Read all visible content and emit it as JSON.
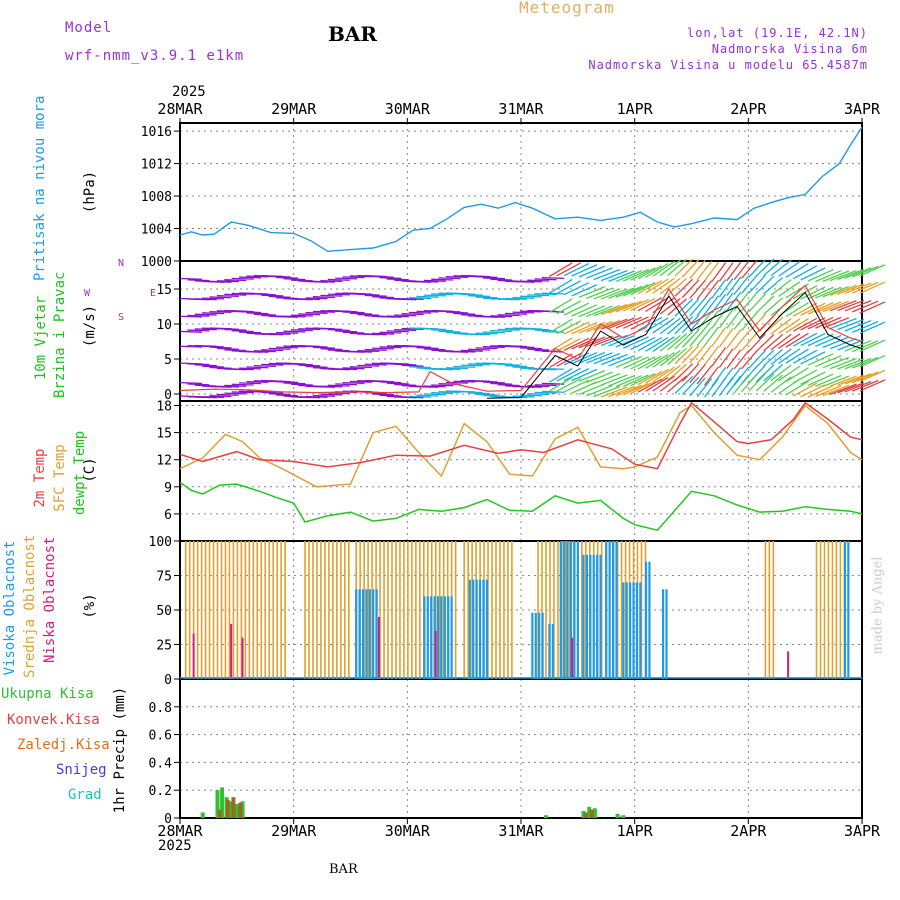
{
  "header": {
    "model_label": "Model",
    "model_name": "wrf-nmm_v3.9.1 e1km",
    "station": "BAR",
    "meteogram": "Meteogram",
    "lonlat": "lon,lat (19.1E, 42.1N)",
    "elevation": "Nadmorska Visina 6m",
    "model_elevation": "Nadmorska Visina u modelu 65.4587m",
    "year_top": "2025",
    "year_bottom": "2025",
    "footer_station": "BAR",
    "watermark": "made by Angel"
  },
  "colors": {
    "pressure": "#1e9be6",
    "temp2m": "#e84040",
    "sfc": "#e0a030",
    "dew": "#20c820",
    "high_cloud": "#1e9be6",
    "mid_cloud": "#e0a030",
    "low_cloud": "#d0207a",
    "total_precip": "#30c030",
    "conv_precip": "#e84040",
    "frz_precip": "#e07020",
    "snow": "#4040e0",
    "hail": "#20c0c0",
    "wind_slow": "#8a10d0",
    "wind_mid": "#10b0e0",
    "wind_fast": "#e8a020",
    "model_label": "#9b30d0"
  },
  "panels": {
    "pressure": {
      "label": "Pritisak na nivou mora",
      "unit": "(hPa)"
    },
    "wind": {
      "label1": "10m Vjetar",
      "label2": "Brzina i Pravac",
      "unit": "(m/s)",
      "compass_n": "N",
      "compass_s": "S",
      "compass_w": "W",
      "compass_e": "E"
    },
    "temp": {
      "label1": "2m Temp",
      "label2": "SFC Temp",
      "label3": "dewpt Temp",
      "unit": "(C)"
    },
    "cloud": {
      "label1": "Visoka Oblacnost",
      "label2": "Srednja Oblacnost",
      "label3": "Niska Oblacnost",
      "unit": "(%)"
    },
    "precip": {
      "unit": "1hr Precip (mm)",
      "legend": [
        "Ukupna Kisa",
        "Konvek.Kisa",
        "Zaledj.Kisa",
        "Snijeg",
        "Grad"
      ]
    }
  },
  "chart_data": {
    "type": "line",
    "x_ticks": [
      "28MAR",
      "29MAR",
      "30MAR",
      "31MAR",
      "1APR",
      "2APR",
      "3APR"
    ],
    "x_range_days": [
      0,
      6
    ],
    "pressure": {
      "ylim": [
        1000,
        1017
      ],
      "ticks": [
        1000,
        1004,
        1008,
        1012,
        1016
      ],
      "x": [
        0,
        0.1,
        0.2,
        0.3,
        0.45,
        0.6,
        0.8,
        1.0,
        1.15,
        1.3,
        1.5,
        1.7,
        1.9,
        2.05,
        2.2,
        2.35,
        2.5,
        2.65,
        2.8,
        2.95,
        3.1,
        3.3,
        3.5,
        3.7,
        3.9,
        4.05,
        4.2,
        4.35,
        4.5,
        4.7,
        4.9,
        5.05,
        5.2,
        5.35,
        5.5,
        5.65,
        5.8,
        5.9,
        6.0
      ],
      "values": [
        1003.2,
        1003.6,
        1003.2,
        1003.3,
        1004.8,
        1004.4,
        1003.5,
        1003.4,
        1002.5,
        1001.2,
        1001.4,
        1001.6,
        1002.4,
        1003.8,
        1004.0,
        1005.2,
        1006.6,
        1007.0,
        1006.5,
        1007.2,
        1006.5,
        1005.2,
        1005.4,
        1005.0,
        1005.4,
        1006.0,
        1004.8,
        1004.2,
        1004.6,
        1005.3,
        1005.1,
        1006.5,
        1007.2,
        1007.8,
        1008.2,
        1010.4,
        1012.0,
        1014.3,
        1016.5
      ]
    },
    "wind": {
      "ylim": [
        -1,
        19
      ],
      "ticks": [
        0,
        5,
        10,
        15
      ],
      "x": [
        0,
        0.3,
        0.6,
        0.9,
        1.2,
        1.5,
        1.8,
        2.1,
        2.2,
        2.4,
        2.7,
        3.0,
        3.1,
        3.3,
        3.5,
        3.7,
        3.9,
        4.1,
        4.3,
        4.5,
        4.7,
        4.9,
        5.1,
        5.3,
        5.5,
        5.7,
        5.9,
        6.0
      ],
      "values": [
        0.5,
        0.7,
        0.6,
        0.3,
        0.2,
        0.3,
        0.2,
        0.3,
        3.2,
        1.5,
        0.4,
        0.5,
        2.5,
        6.5,
        5.0,
        10.0,
        8.0,
        9.5,
        15.0,
        10.0,
        12.0,
        13.5,
        9.0,
        12.5,
        15.5,
        9.5,
        8.0,
        7.5
      ]
    },
    "temperature": {
      "ylim": [
        3,
        18.5
      ],
      "ticks": [
        6,
        9,
        12,
        15,
        18
      ],
      "t2m": {
        "name": "2m Temp",
        "x": [
          0,
          0.2,
          0.5,
          0.7,
          1.0,
          1.3,
          1.6,
          1.9,
          2.2,
          2.5,
          2.8,
          3.0,
          3.2,
          3.5,
          3.8,
          4.0,
          4.2,
          4.4,
          4.5,
          4.7,
          4.9,
          5.0,
          5.2,
          5.4,
          5.5,
          5.7,
          5.9,
          6.0
        ],
        "values": [
          12.6,
          11.8,
          12.9,
          12.0,
          11.8,
          11.2,
          11.7,
          12.5,
          12.4,
          13.6,
          12.7,
          13.1,
          12.8,
          14.2,
          13.2,
          11.5,
          11.0,
          16.0,
          18.3,
          16.2,
          14.0,
          13.8,
          14.2,
          16.5,
          18.3,
          16.5,
          14.5,
          14.2
        ]
      },
      "sfc": {
        "name": "SFC Temp",
        "x": [
          0,
          0.2,
          0.4,
          0.55,
          0.7,
          0.9,
          1.2,
          1.5,
          1.7,
          1.9,
          2.1,
          2.3,
          2.5,
          2.7,
          2.9,
          3.1,
          3.3,
          3.5,
          3.7,
          3.9,
          4.0,
          4.2,
          4.4,
          4.5,
          4.7,
          4.9,
          5.1,
          5.3,
          5.5,
          5.7,
          5.9,
          6.0
        ],
        "values": [
          11.0,
          12.2,
          14.8,
          14.0,
          12.2,
          11.0,
          9.0,
          9.3,
          15.0,
          15.7,
          12.8,
          10.2,
          16.0,
          14.0,
          10.4,
          10.2,
          14.3,
          15.6,
          11.2,
          11.0,
          11.2,
          12.3,
          17.2,
          18.0,
          15.0,
          12.5,
          12.0,
          14.5,
          18.0,
          16.0,
          12.8,
          12.0
        ]
      },
      "dew": {
        "name": "dewpt Temp",
        "x": [
          0,
          0.1,
          0.2,
          0.35,
          0.5,
          0.7,
          0.85,
          1.0,
          1.1,
          1.3,
          1.5,
          1.7,
          1.9,
          2.1,
          2.3,
          2.5,
          2.7,
          2.9,
          3.1,
          3.3,
          3.5,
          3.7,
          3.9,
          4.0,
          4.2,
          4.5,
          4.7,
          4.9,
          5.1,
          5.3,
          5.5,
          5.7,
          5.9,
          6.0
        ],
        "values": [
          9.5,
          8.6,
          8.2,
          9.2,
          9.3,
          8.5,
          7.8,
          7.2,
          5.1,
          5.8,
          6.2,
          5.2,
          5.5,
          6.5,
          6.3,
          6.7,
          7.6,
          6.4,
          6.3,
          8.0,
          7.2,
          7.5,
          5.5,
          4.8,
          4.2,
          8.5,
          8.0,
          7.0,
          6.2,
          6.3,
          6.8,
          6.5,
          6.3,
          6.0
        ]
      }
    },
    "cloud": {
      "ylim": [
        0,
        100
      ],
      "ticks": [
        0,
        25,
        50,
        75,
        100
      ],
      "high_blocks": [
        [
          1.55,
          1.75,
          65
        ],
        [
          2.15,
          2.4,
          60
        ],
        [
          2.55,
          2.7,
          72
        ],
        [
          3.1,
          3.2,
          48
        ],
        [
          3.25,
          3.3,
          40
        ],
        [
          3.35,
          3.5,
          100
        ],
        [
          3.55,
          3.7,
          90
        ],
        [
          3.75,
          3.85,
          100
        ],
        [
          3.9,
          4.05,
          70
        ],
        [
          4.1,
          4.15,
          85
        ],
        [
          4.25,
          4.3,
          65
        ],
        [
          5.85,
          5.9,
          100
        ]
      ],
      "mid_blocks": [
        [
          0.05,
          0.95,
          100
        ],
        [
          1.1,
          1.5,
          100
        ],
        [
          1.55,
          2.45,
          100
        ],
        [
          2.5,
          2.95,
          100
        ],
        [
          3.15,
          4.1,
          100
        ],
        [
          5.15,
          5.25,
          100
        ],
        [
          5.6,
          5.85,
          100
        ]
      ],
      "low_marks": [
        [
          0.12,
          33
        ],
        [
          0.45,
          40
        ],
        [
          0.55,
          30
        ],
        [
          1.75,
          45
        ],
        [
          2.25,
          35
        ],
        [
          3.45,
          30
        ],
        [
          5.35,
          20
        ]
      ]
    },
    "precip": {
      "ylim": [
        0,
        1.0
      ],
      "ticks": [
        0,
        0.2,
        0.4,
        0.6,
        0.8
      ],
      "total": [
        [
          0.2,
          0.04
        ],
        [
          0.33,
          0.2
        ],
        [
          0.37,
          0.22
        ],
        [
          0.41,
          0.15
        ],
        [
          0.45,
          0.12
        ],
        [
          0.5,
          0.1
        ],
        [
          0.55,
          0.12
        ],
        [
          3.22,
          0.02
        ],
        [
          3.55,
          0.05
        ],
        [
          3.6,
          0.08
        ],
        [
          3.65,
          0.07
        ],
        [
          3.85,
          0.03
        ],
        [
          3.9,
          0.02
        ]
      ],
      "conv": [
        [
          0.35,
          0.06
        ],
        [
          0.42,
          0.13
        ],
        [
          0.47,
          0.15
        ],
        [
          0.53,
          0.11
        ],
        [
          3.57,
          0.04
        ],
        [
          3.62,
          0.06
        ]
      ],
      "frz": [],
      "snow": [],
      "hail": []
    }
  }
}
